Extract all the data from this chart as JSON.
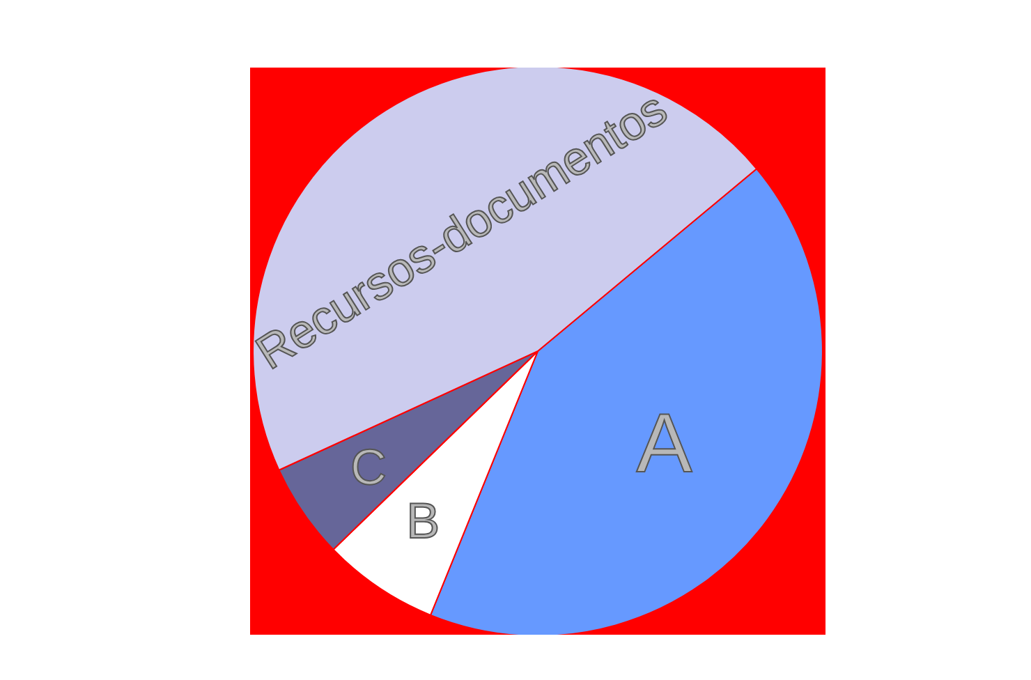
{
  "chart_data": {
    "type": "pie",
    "categories": [
      "A",
      "B",
      "C",
      "Recursos-documentos"
    ],
    "values": [
      42.2,
      6.6,
      5.4,
      45.8
    ],
    "colors": [
      "#6699ff",
      "#ffffff",
      "#666699",
      "#ccccee"
    ]
  }
}
